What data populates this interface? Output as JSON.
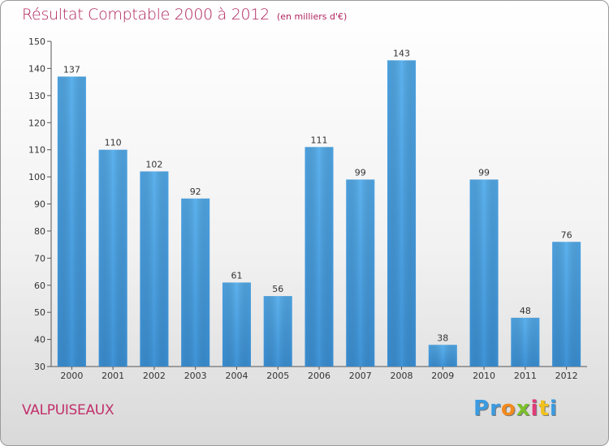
{
  "chart_data": {
    "type": "bar",
    "title": "Résultat Comptable 2000 à 2012",
    "subtitle": "(en milliers d'€)",
    "categories": [
      "2000",
      "2001",
      "2002",
      "2003",
      "2004",
      "2005",
      "2006",
      "2007",
      "2008",
      "2009",
      "2010",
      "2011",
      "2012"
    ],
    "values": [
      137,
      110,
      102,
      92,
      61,
      56,
      111,
      99,
      143,
      38,
      99,
      48,
      76
    ],
    "ylim": [
      30,
      150
    ],
    "yticks": [
      30,
      40,
      50,
      60,
      70,
      80,
      90,
      100,
      110,
      120,
      130,
      140,
      150
    ],
    "xlabel": "",
    "ylabel": "",
    "grid": false,
    "bar_color": "#3f94d8",
    "bar_color_light": "#5cb2ee"
  },
  "location": "VALPUISEAUX",
  "logo": {
    "letters": [
      "P",
      "r",
      "o",
      "x",
      "i",
      "t",
      "i"
    ],
    "colors": [
      "#3b9be0",
      "#3b9be0",
      "#f28a1e",
      "#7bbf2a",
      "#e23b7a",
      "#f2c21e",
      "#3b9be0"
    ]
  }
}
